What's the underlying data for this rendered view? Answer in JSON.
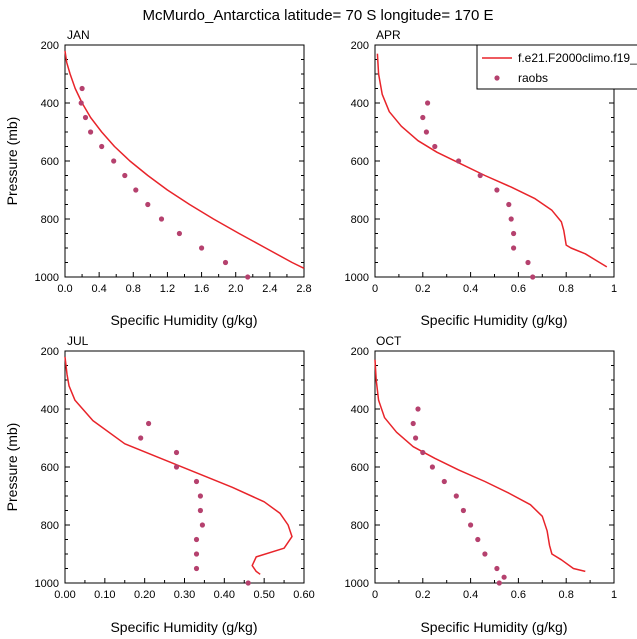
{
  "title": "McMurdo_Antarctica  latitude= 70 S longitude= 170 E",
  "legend": {
    "model_label": "f.e21.F2000climo.f19_",
    "obs_label": "raobs"
  },
  "colors": {
    "model": "#e8242a",
    "obs": "#b5416e",
    "axis": "#000000"
  },
  "chart_data": [
    {
      "type": "line",
      "panel": "JAN",
      "xlabel": "Specific Humidity (g/kg)",
      "ylabel": "Pressure (mb)",
      "xlim": [
        0,
        2.8
      ],
      "ylim": [
        200,
        1000
      ],
      "y_inverted": true,
      "xticks": [
        0.0,
        0.4,
        0.8,
        1.2,
        1.6,
        2.0,
        2.4,
        2.8
      ],
      "xtick_labels": [
        "0.0",
        "0.4",
        "0.8",
        "1.2",
        "1.6",
        "2.0",
        "2.4",
        "2.8"
      ],
      "yticks": [
        200,
        400,
        600,
        800,
        1000
      ],
      "series": [
        {
          "name": "f.e21.F2000climo.f19_",
          "kind": "line",
          "x": [
            0.0,
            0.02,
            0.06,
            0.12,
            0.2,
            0.3,
            0.43,
            0.58,
            0.76,
            0.97,
            1.2,
            1.46,
            1.74,
            2.04,
            2.35,
            2.66,
            2.8
          ],
          "y": [
            220,
            260,
            300,
            350,
            400,
            450,
            500,
            550,
            600,
            650,
            700,
            750,
            800,
            850,
            900,
            950,
            970
          ]
        },
        {
          "name": "raobs",
          "kind": "scatter",
          "x": [
            0.2,
            0.19,
            0.24,
            0.3,
            0.43,
            0.57,
            0.7,
            0.83,
            0.97,
            1.13,
            1.34,
            1.6,
            1.88,
            2.14
          ],
          "y": [
            350,
            400,
            450,
            500,
            550,
            600,
            650,
            700,
            750,
            800,
            850,
            900,
            950,
            1000
          ]
        }
      ]
    },
    {
      "type": "line",
      "panel": "APR",
      "xlabel": "Specific Humidity (g/kg)",
      "ylabel": "",
      "xlim": [
        0,
        1.0
      ],
      "ylim": [
        200,
        1000
      ],
      "y_inverted": true,
      "xticks": [
        0.0,
        0.2,
        0.4,
        0.6,
        0.8,
        1.0
      ],
      "xtick_labels": [
        "0",
        "0.2",
        "0.4",
        "0.6",
        "0.8",
        "1"
      ],
      "yticks": [
        200,
        400,
        600,
        800,
        1000
      ],
      "series": [
        {
          "name": "f.e21.F2000climo.f19_",
          "kind": "line",
          "x": [
            0.01,
            0.015,
            0.03,
            0.06,
            0.11,
            0.18,
            0.26,
            0.36,
            0.46,
            0.57,
            0.67,
            0.74,
            0.78,
            0.79,
            0.8,
            0.82,
            0.88,
            0.93,
            0.97
          ],
          "y": [
            230,
            300,
            370,
            430,
            480,
            530,
            570,
            610,
            650,
            690,
            730,
            770,
            810,
            840,
            890,
            900,
            920,
            945,
            965
          ]
        },
        {
          "name": "raobs",
          "kind": "scatter",
          "x": [
            0.22,
            0.2,
            0.215,
            0.25,
            0.35,
            0.44,
            0.51,
            0.56,
            0.57,
            0.58,
            0.58,
            0.64,
            0.66
          ],
          "y": [
            400,
            450,
            500,
            550,
            600,
            650,
            700,
            750,
            800,
            850,
            900,
            950,
            1000
          ]
        }
      ]
    },
    {
      "type": "line",
      "panel": "JUL",
      "xlabel": "Specific Humidity (g/kg)",
      "ylabel": "Pressure (mb)",
      "xlim": [
        0,
        0.6
      ],
      "ylim": [
        200,
        1000
      ],
      "y_inverted": true,
      "xticks": [
        0.0,
        0.1,
        0.2,
        0.3,
        0.4,
        0.5,
        0.6
      ],
      "xtick_labels": [
        "0.00",
        "0.10",
        "0.20",
        "0.30",
        "0.40",
        "0.50",
        "0.60"
      ],
      "yticks": [
        200,
        400,
        600,
        800,
        1000
      ],
      "series": [
        {
          "name": "f.e21.F2000climo.f19_",
          "kind": "line",
          "x": [
            0.0,
            0.005,
            0.01,
            0.025,
            0.07,
            0.15,
            0.24,
            0.33,
            0.42,
            0.5,
            0.54,
            0.56,
            0.57,
            0.55,
            0.48,
            0.47,
            0.48,
            0.49
          ],
          "y": [
            220,
            280,
            320,
            370,
            440,
            520,
            570,
            620,
            670,
            720,
            760,
            800,
            840,
            880,
            910,
            940,
            960,
            970
          ]
        },
        {
          "name": "raobs",
          "kind": "scatter",
          "x": [
            0.21,
            0.19,
            0.28,
            0.28,
            0.33,
            0.34,
            0.34,
            0.345,
            0.33,
            0.33,
            0.33,
            0.46
          ],
          "y": [
            450,
            500,
            550,
            600,
            650,
            700,
            750,
            800,
            850,
            900,
            950,
            1000
          ]
        }
      ]
    },
    {
      "type": "line",
      "panel": "OCT",
      "xlabel": "Specific Humidity (g/kg)",
      "ylabel": "",
      "xlim": [
        0,
        1.0
      ],
      "ylim": [
        200,
        1000
      ],
      "y_inverted": true,
      "xticks": [
        0.0,
        0.2,
        0.4,
        0.6,
        0.8,
        1.0
      ],
      "xtick_labels": [
        "0",
        "0.2",
        "0.4",
        "0.6",
        "0.8",
        "1"
      ],
      "yticks": [
        200,
        400,
        600,
        800,
        1000
      ],
      "series": [
        {
          "name": "f.e21.F2000climo.f19_",
          "kind": "line",
          "x": [
            0.0,
            0.005,
            0.015,
            0.04,
            0.09,
            0.16,
            0.25,
            0.35,
            0.46,
            0.56,
            0.65,
            0.7,
            0.72,
            0.73,
            0.74,
            0.78,
            0.83,
            0.88
          ],
          "y": [
            230,
            300,
            370,
            430,
            480,
            530,
            570,
            610,
            650,
            690,
            730,
            770,
            820,
            870,
            900,
            920,
            950,
            960
          ]
        },
        {
          "name": "raobs",
          "kind": "scatter",
          "x": [
            0.18,
            0.16,
            0.17,
            0.2,
            0.24,
            0.29,
            0.34,
            0.37,
            0.4,
            0.43,
            0.46,
            0.51,
            0.54,
            0.52
          ],
          "y": [
            400,
            450,
            500,
            550,
            600,
            650,
            700,
            750,
            800,
            850,
            900,
            950,
            980,
            1000
          ]
        }
      ]
    }
  ]
}
